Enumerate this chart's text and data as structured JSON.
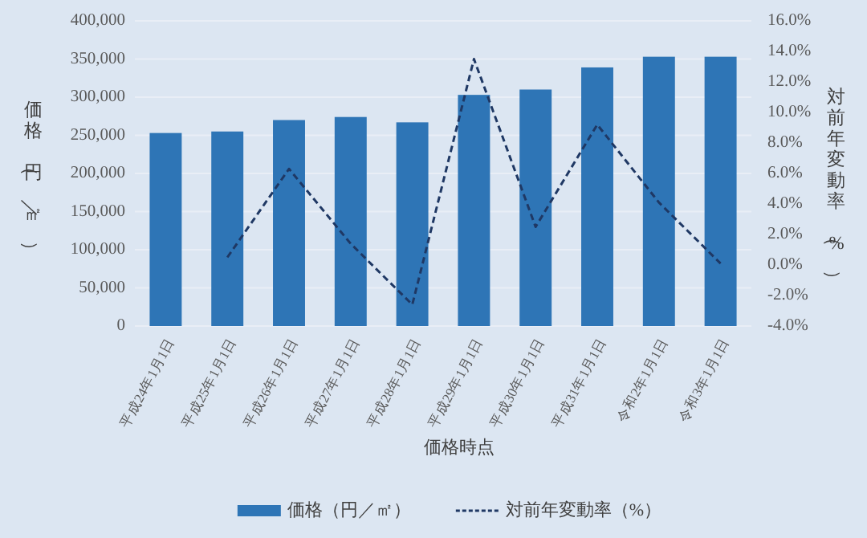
{
  "chart_data": {
    "type": "bar",
    "xlabel": "価格時点",
    "ylabel": "価格（円／㎡）",
    "y2label": "対前年変動率（%）",
    "categories": [
      "平成24年1月1日",
      "平成25年1月1日",
      "平成26年1月1日",
      "平成27年1月1日",
      "平成28年1月1日",
      "平成29年1月1日",
      "平成30年1月1日",
      "平成31年1月1日",
      "令和2年1月1日",
      "令和3年1月1日"
    ],
    "series": [
      {
        "name": "価格（円／㎡）",
        "color": "#2e75b6",
        "values": [
          253000,
          255000,
          270000,
          274000,
          267000,
          303000,
          310000,
          339000,
          353000,
          353000
        ]
      },
      {
        "name": "対前年変動率（%）",
        "type": "line",
        "axis": "y2",
        "color": "#1f3864",
        "line_style": "dashed",
        "marker": "none",
        "values": [
          null,
          0.5,
          6.3,
          1.4,
          -2.6,
          13.5,
          2.5,
          9.2,
          4.1,
          0.1
        ]
      }
    ],
    "ylim": [
      0,
      400000
    ],
    "yticks": [
      0,
      {
        "value": 50000,
        "label": "50,000"
      },
      {
        "value": 100000,
        "label": "100,000"
      },
      {
        "value": 150000,
        "label": "150,000"
      },
      {
        "value": 200000,
        "label": "200,000"
      },
      {
        "value": 250000,
        "label": "250,000"
      },
      {
        "value": 300000,
        "label": "300,000"
      },
      {
        "value": 350000,
        "label": "350,000"
      },
      {
        "value": 400000,
        "label": "400,000"
      }
    ],
    "y2lim": [
      -4,
      16
    ],
    "y2ticks": [
      {
        "value": -4,
        "label": "-4.0%"
      },
      {
        "value": -2,
        "label": "-2.0%"
      },
      {
        "value": 0,
        "label": "0.0%"
      },
      {
        "value": 2,
        "label": "2.0%"
      },
      {
        "value": 4,
        "label": "4.0%"
      },
      {
        "value": 6,
        "label": "6.0%"
      },
      {
        "value": 8,
        "label": "8.0%"
      },
      {
        "value": 10,
        "label": "10.0%"
      },
      {
        "value": 12,
        "label": "12.0%"
      },
      {
        "value": 14,
        "label": "14.0%"
      },
      {
        "value": 16,
        "label": "16.0%"
      }
    ],
    "grid": "y",
    "legend": "bottom"
  }
}
